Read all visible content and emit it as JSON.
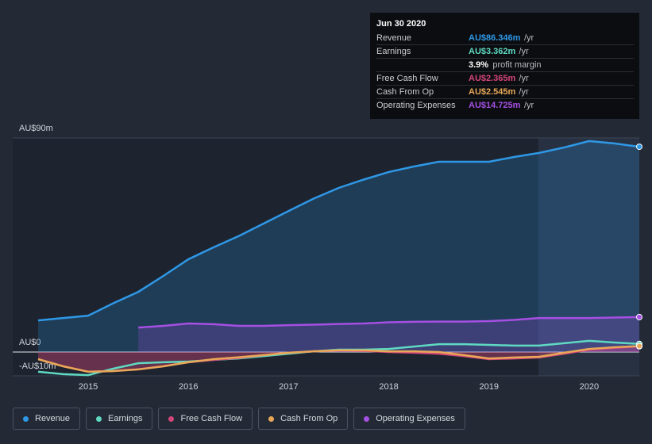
{
  "chart_data": {
    "type": "line",
    "x": [
      2014.5,
      2014.75,
      2015,
      2015.25,
      2015.5,
      2015.75,
      2016,
      2016.25,
      2016.5,
      2016.75,
      2017,
      2017.25,
      2017.5,
      2017.75,
      2018,
      2018.25,
      2018.5,
      2018.75,
      2019,
      2019.25,
      2019.5,
      2019.75,
      2020,
      2020.25,
      2020.5
    ],
    "xlim": [
      2014.5,
      2020.5
    ],
    "xticks": [
      2015,
      2016,
      2017,
      2018,
      2019,
      2020
    ],
    "ylim": [
      -10,
      90
    ],
    "yticks": [
      {
        "value": 90,
        "label": "AU$90m"
      },
      {
        "value": 0,
        "label": "AU$0"
      },
      {
        "value": -10,
        "label": "-AU$10m"
      }
    ],
    "series": [
      {
        "name": "Revenue",
        "color": "#2f98e6",
        "fill": true,
        "values": [
          13.3,
          14.3,
          15.3,
          20.5,
          25.3,
          32,
          39,
          44,
          48.7,
          54,
          59.3,
          64.5,
          69,
          72.5,
          75.7,
          78,
          80,
          80,
          80,
          82,
          83.7,
          86,
          88.7,
          87.7,
          86.3
        ]
      },
      {
        "name": "Earnings",
        "color": "#5fd9c2",
        "fill": false,
        "values": [
          -8.3,
          -9.3,
          -9.7,
          -7,
          -4.7,
          -4.3,
          -4,
          -3.3,
          -2.7,
          -1.7,
          -0.7,
          0.3,
          1,
          1,
          1.3,
          2.3,
          3.3,
          3.3,
          3,
          2.7,
          2.7,
          3.7,
          4.7,
          4,
          3.4
        ]
      },
      {
        "name": "Free Cash Flow",
        "color": "#d4457a",
        "fill": false,
        "values": [
          -3,
          -6,
          -8.3,
          -8,
          -7.3,
          -6,
          -4.3,
          -3.3,
          -2.5,
          -1.3,
          -0.3,
          0.3,
          0.7,
          0.5,
          0,
          -0.3,
          -0.7,
          -1.7,
          -3,
          -2.7,
          -2.3,
          -0.7,
          1,
          1.7,
          2.4
        ]
      },
      {
        "name": "Cash From Op",
        "color": "#e8a857",
        "fill": false,
        "values": [
          -3,
          -6,
          -8.3,
          -8,
          -7.3,
          -6,
          -4.3,
          -3,
          -2.2,
          -1.3,
          -0.3,
          0.3,
          0.7,
          0.7,
          0.3,
          0.3,
          0,
          -1.3,
          -2.7,
          -2.3,
          -2,
          -0.3,
          1.3,
          2,
          2.5
        ]
      },
      {
        "name": "Operating Expenses",
        "color": "#a54fe3",
        "fill": true,
        "values": [
          null,
          null,
          null,
          null,
          10.3,
          11,
          12,
          11.7,
          11,
          11,
          11.3,
          11.5,
          11.8,
          12,
          12.5,
          12.7,
          12.8,
          12.8,
          13,
          13.5,
          14.3,
          14.3,
          14.3,
          14.5,
          14.7
        ]
      }
    ],
    "tooltip": {
      "date": "Jun 30 2020",
      "rows": [
        {
          "label": "Revenue",
          "value": "AU$86.346m",
          "unit": "/yr"
        },
        {
          "label": "Earnings",
          "value": "AU$3.362m",
          "unit": "/yr"
        },
        {
          "label": "",
          "value": "3.9%",
          "unit": "profit margin"
        },
        {
          "label": "Free Cash Flow",
          "value": "AU$2.365m",
          "unit": "/yr"
        },
        {
          "label": "Cash From Op",
          "value": "AU$2.545m",
          "unit": "/yr"
        },
        {
          "label": "Operating Expenses",
          "value": "AU$14.725m",
          "unit": "/yr"
        }
      ]
    }
  }
}
